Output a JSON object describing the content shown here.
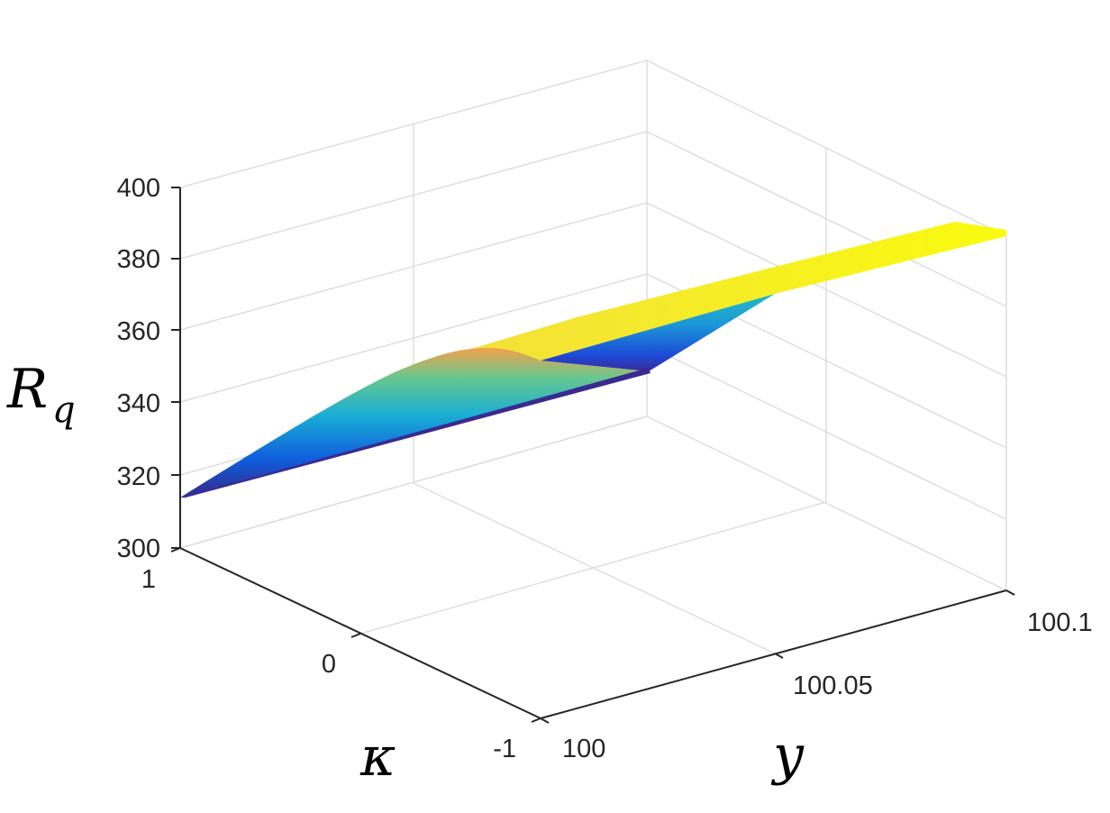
{
  "chart_data": {
    "type": "surface",
    "title": "",
    "xlabel": "y",
    "ylabel": "κ",
    "zlabel": "R",
    "zlabel_subscript": "q",
    "xlim": [
      100,
      100.1
    ],
    "ylim": [
      -1,
      1
    ],
    "zlim": [
      300,
      400
    ],
    "x_ticks": [
      "100",
      "100.05",
      "100.1"
    ],
    "y_ticks": [
      "-1",
      "0",
      "1"
    ],
    "z_ticks": [
      "300",
      "320",
      "340",
      "360",
      "380",
      "400"
    ],
    "grid": true,
    "colormap": "parula",
    "colors": {
      "low": "#352a87",
      "mid_low": "#0f5cdd",
      "mid": "#1aaed4",
      "mid_high": "#67c88f",
      "high": "#f9fb0e",
      "edge_orange": "#f5a04a"
    },
    "surface_samples": [
      {
        "y": 100,
        "kappa": -1,
        "R": 313
      },
      {
        "y": 100,
        "kappa": 1,
        "R": 313
      },
      {
        "y": 100.05,
        "kappa": -1,
        "R": 350
      },
      {
        "y": 100.05,
        "kappa": 1,
        "R": 362
      },
      {
        "y": 100.1,
        "kappa": -1,
        "R": 388
      },
      {
        "y": 100.1,
        "kappa": 1,
        "R": 388
      }
    ]
  }
}
